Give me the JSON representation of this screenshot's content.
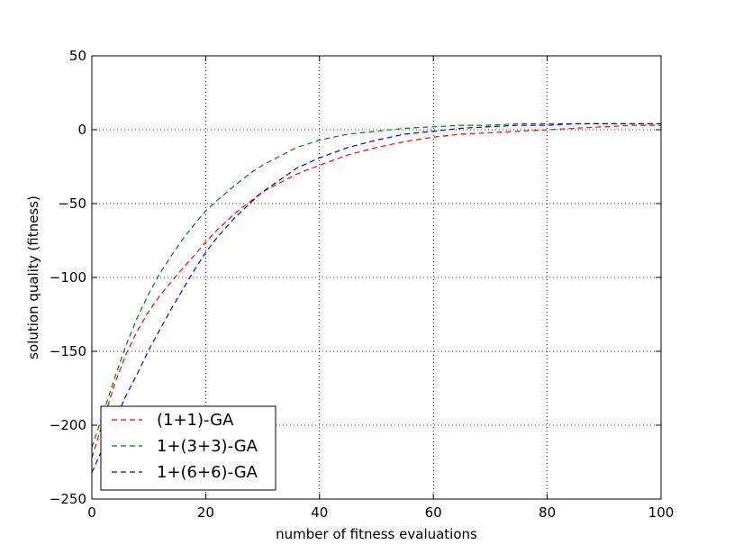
{
  "chart_data": {
    "type": "line",
    "title": "",
    "xlabel": "number of fitness evaluations",
    "ylabel": "solution quality (fitness)",
    "xlim": [
      0,
      100
    ],
    "ylim": [
      -250,
      50
    ],
    "xticks": [
      0,
      20,
      40,
      60,
      80,
      100
    ],
    "yticks": [
      -250,
      -200,
      -150,
      -100,
      -50,
      0,
      50
    ],
    "xtick_labels": [
      "0",
      "20",
      "40",
      "60",
      "80",
      "100"
    ],
    "ytick_labels": [
      "−250",
      "−200",
      "−150",
      "−100",
      "−50",
      "0",
      "50"
    ],
    "grid": true,
    "legend_position": "lower-left",
    "line_style": "dashed",
    "series": [
      {
        "name": "(1+1)-GA",
        "color": "#ff0000",
        "x": [
          0,
          2,
          4,
          6,
          8,
          10,
          12,
          15,
          18,
          20,
          22,
          25,
          28,
          30,
          33,
          36,
          40,
          45,
          50,
          55,
          60,
          65,
          70,
          75,
          80,
          85,
          90,
          95,
          100
        ],
        "y": [
          -222,
          -197,
          -172,
          -152,
          -136,
          -123,
          -112,
          -98,
          -85,
          -76,
          -68,
          -57,
          -48,
          -42,
          -36,
          -30,
          -24,
          -17,
          -12,
          -8,
          -5,
          -3,
          -2,
          -1,
          0,
          1,
          2,
          3,
          3
        ]
      },
      {
        "name": "1+(3+3)-GA",
        "color": "#007f00",
        "x": [
          0,
          2,
          4,
          6,
          8,
          10,
          12,
          14,
          16,
          18,
          20,
          22,
          25,
          28,
          30,
          33,
          36,
          40,
          45,
          50,
          55,
          60,
          65,
          70,
          75,
          80,
          85,
          90,
          95,
          100
        ],
        "y": [
          -215,
          -192,
          -168,
          -146,
          -127,
          -111,
          -97,
          -85,
          -74,
          -64,
          -55,
          -48,
          -38,
          -29,
          -24,
          -18,
          -12,
          -7,
          -3,
          -1,
          1,
          2,
          3,
          3,
          4,
          4,
          4,
          4,
          4,
          4
        ]
      },
      {
        "name": "1+(6+6)-GA",
        "color": "#0000ff",
        "x": [
          0,
          2,
          4,
          6,
          8,
          10,
          12,
          14,
          16,
          18,
          20,
          22,
          25,
          28,
          30,
          33,
          36,
          40,
          45,
          50,
          55,
          60,
          65,
          70,
          75,
          80,
          85,
          90,
          95,
          100
        ],
        "y": [
          -232,
          -215,
          -197,
          -180,
          -165,
          -149,
          -135,
          -121,
          -108,
          -95,
          -83,
          -73,
          -60,
          -49,
          -42,
          -34,
          -26,
          -19,
          -12,
          -7,
          -3,
          -1,
          1,
          2,
          3,
          3,
          4,
          4,
          4,
          4
        ]
      }
    ]
  }
}
